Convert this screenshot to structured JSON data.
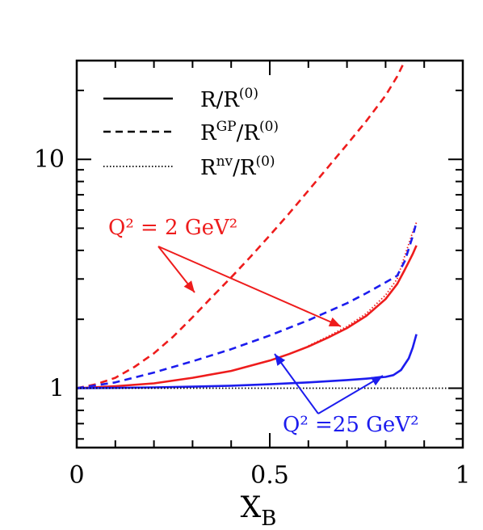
{
  "chart_data": {
    "type": "line",
    "xlabel": "X",
    "xlabel_sub": "B",
    "xlim": [
      0,
      1
    ],
    "ylim": [
      0.55,
      27
    ],
    "yscale": "log",
    "x_ticks": [
      {
        "value": 0,
        "label": "0"
      },
      {
        "value": 0.5,
        "label": "0.5"
      },
      {
        "value": 1,
        "label": "1"
      }
    ],
    "y_ticks": [
      {
        "value": 1,
        "label": "1"
      },
      {
        "value": 10,
        "label": "10"
      }
    ],
    "legend": {
      "position": "top-left",
      "entries": [
        {
          "style": "solid",
          "base": "R",
          "sup": "",
          "den_base": "/R",
          "den_sup": "(0)"
        },
        {
          "style": "dashed",
          "base": "R",
          "sup": "GP",
          "den_base": "/R",
          "den_sup": "(0)"
        },
        {
          "style": "dotted",
          "base": "R",
          "sup": "nv",
          "den_base": "/R",
          "den_sup": "(0)"
        }
      ]
    },
    "annotations": [
      {
        "text": "Q² = 2 GeV²",
        "color": "#ee1c1c"
      },
      {
        "text": "Q² =25 GeV²",
        "color": "#1c1cee"
      }
    ],
    "series": [
      {
        "group": "Q2=2",
        "style": "dashed",
        "color": "#ee1c1c",
        "x": [
          0,
          0.05,
          0.1,
          0.15,
          0.2,
          0.25,
          0.3,
          0.35,
          0.4,
          0.45,
          0.5,
          0.55,
          0.6,
          0.65,
          0.7,
          0.75,
          0.8,
          0.83,
          0.85
        ],
        "y": [
          1.0,
          1.04,
          1.11,
          1.24,
          1.42,
          1.68,
          2.04,
          2.5,
          3.05,
          3.75,
          4.65,
          5.8,
          7.3,
          9.2,
          11.6,
          14.7,
          19.0,
          23.0,
          27.0
        ]
      },
      {
        "group": "Q2=2",
        "style": "solid",
        "color": "#ee1c1c",
        "x": [
          0,
          0.1,
          0.2,
          0.3,
          0.4,
          0.5,
          0.55,
          0.6,
          0.65,
          0.7,
          0.75,
          0.8,
          0.83,
          0.85,
          0.87,
          0.88
        ],
        "y": [
          1.0,
          1.02,
          1.05,
          1.11,
          1.19,
          1.32,
          1.41,
          1.52,
          1.66,
          1.83,
          2.07,
          2.45,
          2.85,
          3.3,
          3.85,
          4.2
        ]
      },
      {
        "group": "Q2=2",
        "style": "dotted",
        "color": "#ee1c1c",
        "x": [
          0.6,
          0.65,
          0.7,
          0.75,
          0.8,
          0.83,
          0.85,
          0.87,
          0.88
        ],
        "y": [
          1.53,
          1.68,
          1.86,
          2.12,
          2.55,
          3.0,
          3.8,
          4.8,
          5.3
        ]
      },
      {
        "group": "Q2=25",
        "style": "dashed",
        "color": "#1c1cee",
        "x": [
          0,
          0.1,
          0.2,
          0.3,
          0.4,
          0.5,
          0.6,
          0.7,
          0.75,
          0.8,
          0.83,
          0.85,
          0.87,
          0.88
        ],
        "y": [
          1.0,
          1.06,
          1.17,
          1.31,
          1.48,
          1.7,
          1.98,
          2.35,
          2.6,
          2.9,
          3.1,
          3.6,
          4.6,
          5.3
        ]
      },
      {
        "group": "Q2=25",
        "style": "solid",
        "color": "#1c1cee",
        "x": [
          0,
          0.1,
          0.2,
          0.3,
          0.4,
          0.5,
          0.6,
          0.7,
          0.75,
          0.8,
          0.82,
          0.84,
          0.86,
          0.87,
          0.88
        ],
        "y": [
          1.0,
          1.003,
          1.008,
          1.015,
          1.025,
          1.04,
          1.06,
          1.085,
          1.1,
          1.12,
          1.14,
          1.2,
          1.35,
          1.5,
          1.72
        ]
      },
      {
        "group": "Q2=25",
        "style": "dotted",
        "color": "#000000",
        "x": [
          0,
          1
        ],
        "y": [
          1.0,
          1.0
        ]
      }
    ]
  }
}
